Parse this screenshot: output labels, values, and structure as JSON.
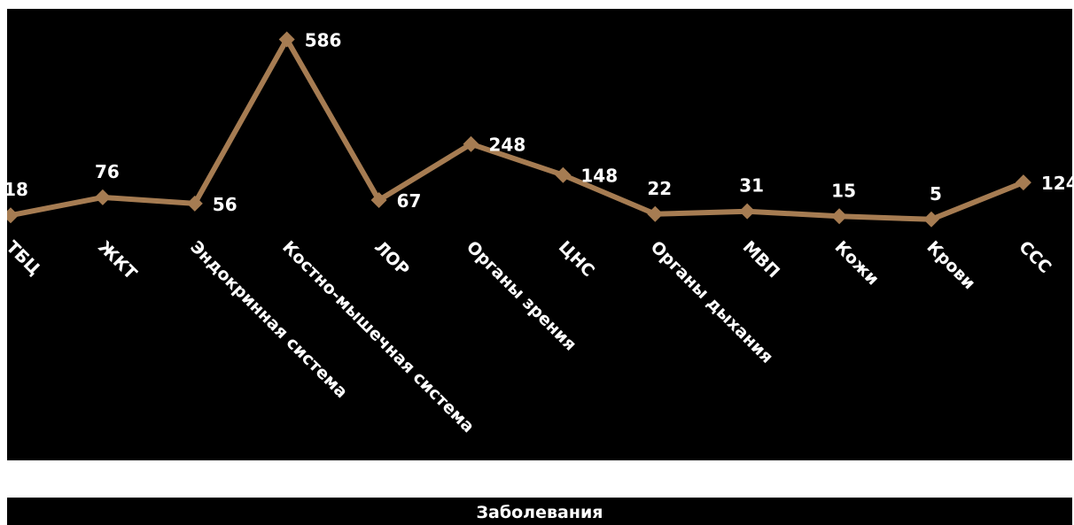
{
  "chart_data": {
    "type": "line",
    "categories": [
      "ТБЦ",
      "ЖКТ",
      "Эндокринная система",
      "Костно-мышечная система",
      "ЛОР",
      "Органы зрения",
      "ЦНС",
      "Органы дыхания",
      "МВП",
      "Кожи",
      "Крови",
      "ССС"
    ],
    "series": [
      {
        "name": "Заболевания",
        "values": [
          18,
          76,
          56,
          586,
          67,
          248,
          148,
          22,
          31,
          15,
          5,
          124
        ],
        "color": "#a67c52"
      }
    ],
    "title": "",
    "xlabel": "",
    "ylabel": "",
    "ylim": [
      0,
      600
    ],
    "grid": false,
    "legend_placement": "bottom",
    "background": "#000000",
    "text_color": "#ffffff"
  }
}
